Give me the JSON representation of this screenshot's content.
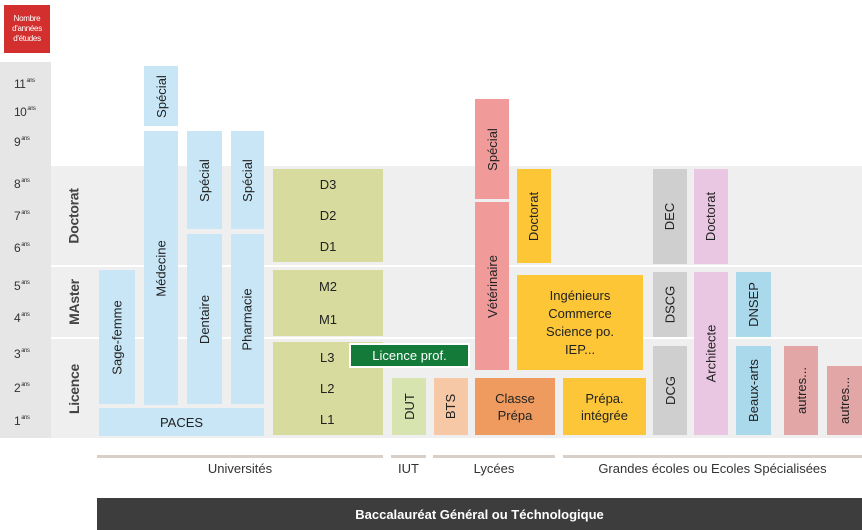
{
  "header": {
    "label": "Nombre d'années d'études"
  },
  "years": [
    {
      "n": "11",
      "suffix": "ans"
    },
    {
      "n": "10",
      "suffix": "ans"
    },
    {
      "n": "9",
      "suffix": "ans"
    },
    {
      "n": "8",
      "suffix": "ans"
    },
    {
      "n": "7",
      "suffix": "ans"
    },
    {
      "n": "6",
      "suffix": "ans"
    },
    {
      "n": "5",
      "suffix": "ans"
    },
    {
      "n": "4",
      "suffix": "ans"
    },
    {
      "n": "3",
      "suffix": "ans"
    },
    {
      "n": "2",
      "suffix": "ans"
    },
    {
      "n": "1",
      "suffix": "ans"
    }
  ],
  "cycles": {
    "doctorat": "Doctorat",
    "master": "MAster",
    "licence": "Licence"
  },
  "universites": {
    "sage_femme": "Sage-femme",
    "paces": "PACES",
    "medecine": "Médecine",
    "medecine_special": "Spécial",
    "dentaire": "Dentaire",
    "dentaire_special": "Spécial",
    "pharmacie": "Pharmacie",
    "pharmacie_special": "Spécial",
    "lmd": {
      "d3": "D3",
      "d2": "D2",
      "d1": "D1",
      "m2": "M2",
      "m1": "M1",
      "l3": "L3",
      "l2": "L2",
      "l1": "L1"
    },
    "licence_prof": "Licence prof."
  },
  "iut": {
    "dut": "DUT"
  },
  "lycees": {
    "bts": "BTS",
    "classe_prepa": [
      "Classe",
      "Prépa"
    ],
    "veterinaire": "Vétérinaire",
    "veterinaire_special": "Spécial"
  },
  "ecoles": {
    "doctorat": "Doctorat",
    "ingenieurs": [
      "Ingénieurs",
      "Commerce",
      "Science po.",
      "IEP..."
    ],
    "prepa_integree": [
      "Prépa.",
      "intégrée"
    ],
    "dec": "DEC",
    "dscg": "DSCG",
    "dcg": "DCG",
    "architecte": "Architecte",
    "architecte_doctorat": "Doctorat",
    "dnsep": "DNSEP",
    "beaux_arts": "Beaux-arts",
    "autres1": "autres...",
    "autres2": "autres..."
  },
  "groups": {
    "universites": "Universités",
    "iut": "IUT",
    "lycees": "Lycées",
    "ecoles": "Grandes écoles ou Ecoles Spécialisées"
  },
  "footer": {
    "bac": "Baccalauréat Général ou Téchnologique"
  },
  "colors": {
    "header": "#d32f2f",
    "blue": "#c8e6f5",
    "olive": "#d7dc9e",
    "pink": "#f19a9a",
    "amber": "#fcc636",
    "grey": "#cfcfcf",
    "lilac": "#e9c7e3",
    "green_badge": "#137a3a",
    "footer": "#3d3d3d"
  }
}
